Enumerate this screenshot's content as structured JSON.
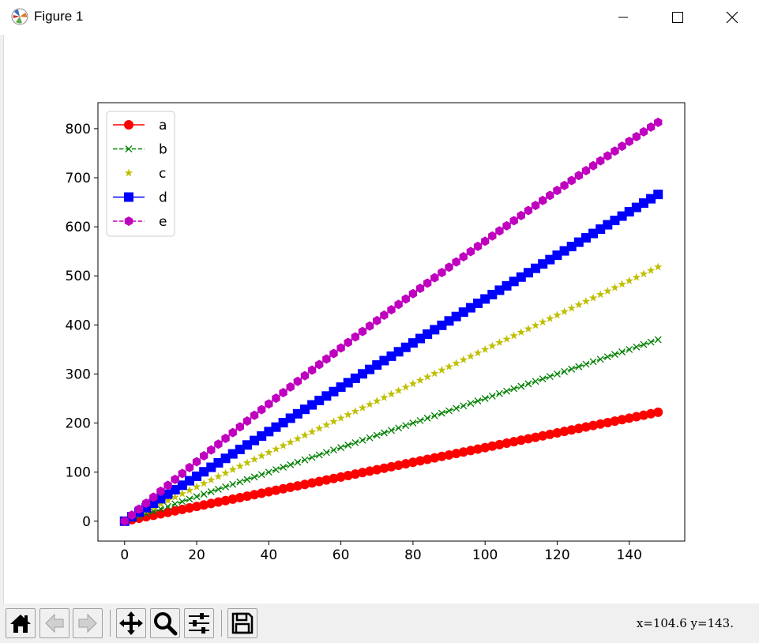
{
  "window": {
    "title": "Figure 1",
    "icon": "matplotlib-icon",
    "controls": [
      "minimize-icon",
      "maximize-icon",
      "close-icon"
    ]
  },
  "toolbar": {
    "buttons": [
      "home-icon",
      "back-icon",
      "forward-icon",
      "pan-icon",
      "zoom-icon",
      "configure-subplots-icon",
      "save-icon"
    ],
    "coordinates": "x=104.6  y=143."
  },
  "chart_data": {
    "type": "line",
    "x": [
      0,
      2,
      4,
      6,
      8,
      10,
      12,
      14,
      16,
      18,
      20,
      22,
      24,
      26,
      28,
      30,
      32,
      34,
      36,
      38,
      40,
      42,
      44,
      46,
      48,
      50,
      52,
      54,
      56,
      58,
      60,
      62,
      64,
      66,
      68,
      70,
      72,
      74,
      76,
      78,
      80,
      82,
      84,
      86,
      88,
      90,
      92,
      94,
      96,
      98,
      100,
      102,
      104,
      106,
      108,
      110,
      112,
      114,
      116,
      118,
      120,
      122,
      124,
      126,
      128,
      130,
      132,
      134,
      136,
      138,
      140,
      142,
      144,
      146,
      148
    ],
    "xlim": [
      -7.4,
      155.4
    ],
    "ylim": [
      -40.6,
      853.0
    ],
    "xticks": [
      0,
      20,
      40,
      60,
      80,
      100,
      120,
      140
    ],
    "yticks": [
      0,
      100,
      200,
      300,
      400,
      500,
      600,
      700,
      800
    ],
    "legend_location": "upper-left",
    "series": [
      {
        "name": "a",
        "color": "#ff0000",
        "line": "solid",
        "marker": "circle",
        "y_end": 222
      },
      {
        "name": "b",
        "color": "#008000",
        "line": "dashed",
        "marker": "x",
        "y_end": 370
      },
      {
        "name": "c",
        "color": "#bfbf00",
        "line": "none",
        "marker": "star",
        "y_end": 518
      },
      {
        "name": "d",
        "color": "#0000ff",
        "line": "solid",
        "marker": "square",
        "y_end": 666
      },
      {
        "name": "e",
        "color": "#bf00bf",
        "line": "dashed",
        "marker": "hexagon",
        "y_end": 813
      }
    ]
  }
}
